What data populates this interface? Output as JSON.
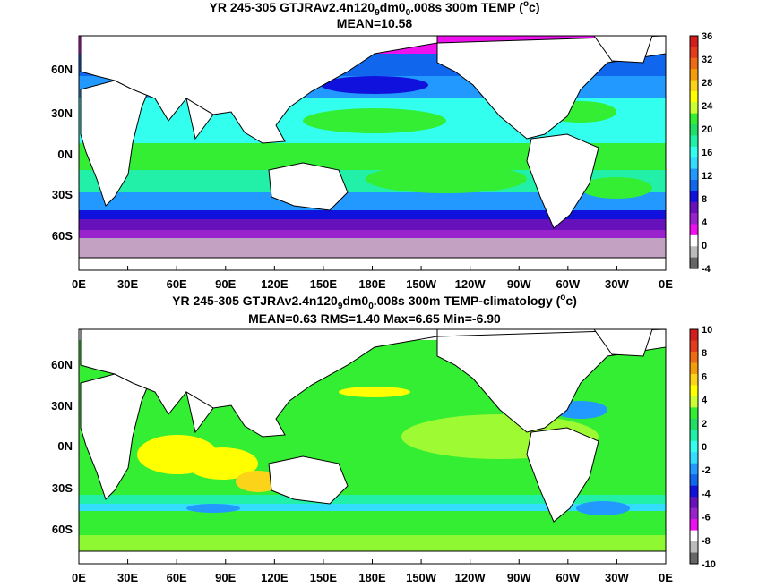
{
  "chart_data": [
    {
      "type": "heatmap",
      "title_prefix": "YR 245-305 GTJRAv2.4n120",
      "title_sub1": "9",
      "title_mid": "dm0",
      "title_sub2": "0",
      "title_suffix": ".008s 300m TEMP (",
      "title_sup": "o",
      "title_end": "c)",
      "stats": "MEAN=10.58",
      "xticks": [
        "0E",
        "30E",
        "60E",
        "90E",
        "120E",
        "150E",
        "180E",
        "150W",
        "120W",
        "90W",
        "60W",
        "30W",
        "0E"
      ],
      "yticks": [
        "60N",
        "30N",
        "0N",
        "30S",
        "60S"
      ],
      "colorbar_ticks": [
        "36",
        "32",
        "28",
        "24",
        "20",
        "16",
        "12",
        "8",
        "4",
        "0",
        "-4"
      ],
      "colorbar_colors": [
        "#d31d1d",
        "#e23b1e",
        "#ee6a14",
        "#f39d0b",
        "#fbd419",
        "#ffff00",
        "#ccff33",
        "#33ee33",
        "#22dd66",
        "#22f0a8",
        "#33ffee",
        "#33ddff",
        "#2299ff",
        "#1166ee",
        "#1111dd",
        "#6611bb",
        "#9922cc",
        "#ee11ee",
        "#ffffff",
        "#bbbbbb",
        "#666666"
      ],
      "colorbar_range": [
        -4,
        36
      ]
    },
    {
      "type": "heatmap",
      "title_prefix": "YR 245-305 GTJRAv2.4n120",
      "title_sub1": "9",
      "title_mid": "dm0",
      "title_sub2": "0",
      "title_suffix": ".008s 300m TEMP-climatology (",
      "title_sup": "o",
      "title_end": "c)",
      "stats": "MEAN=0.63   RMS=1.40   Max=6.65   Min=-6.90",
      "xticks": [
        "0E",
        "30E",
        "60E",
        "90E",
        "120E",
        "150E",
        "180E",
        "150W",
        "120W",
        "90W",
        "60W",
        "30W",
        "0E"
      ],
      "yticks": [
        "60N",
        "30N",
        "0N",
        "30S",
        "60S"
      ],
      "colorbar_ticks": [
        "10",
        "8",
        "6",
        "4",
        "2",
        "0",
        "-2",
        "-4",
        "-6",
        "-8",
        "-10"
      ],
      "colorbar_colors": [
        "#d31d1d",
        "#e23b1e",
        "#ee6a14",
        "#f39d0b",
        "#fbd419",
        "#ffff00",
        "#ccff33",
        "#33ee33",
        "#22dd66",
        "#22f0a8",
        "#33ffee",
        "#33ddff",
        "#2299ff",
        "#1166ee",
        "#1111dd",
        "#6611bb",
        "#9922cc",
        "#ee11ee",
        "#ffffff",
        "#bbbbbb",
        "#666666"
      ],
      "colorbar_range": [
        -10,
        10
      ]
    }
  ]
}
